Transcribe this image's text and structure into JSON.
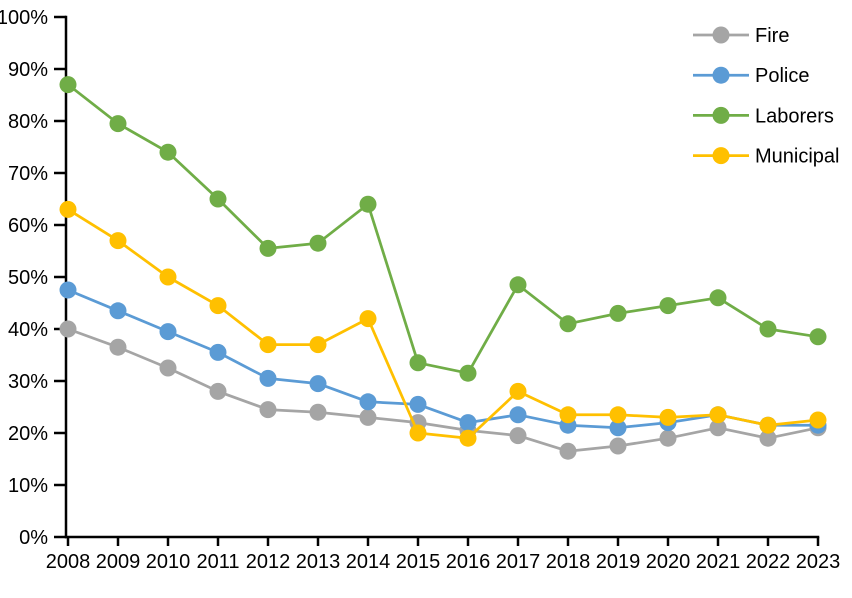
{
  "chart_data": {
    "type": "line",
    "title": "",
    "categories": [
      "2008",
      "2009",
      "2010",
      "2011",
      "2012",
      "2013",
      "2014",
      "2015",
      "2016",
      "2017",
      "2018",
      "2019",
      "2020",
      "2021",
      "2022",
      "2023"
    ],
    "series": [
      {
        "name": "Fire",
        "color": "#A5A5A5",
        "values": [
          40,
          36.5,
          32.5,
          28,
          24.5,
          24,
          23,
          22,
          20.5,
          19.5,
          16.5,
          17.5,
          19,
          21,
          19,
          21
        ]
      },
      {
        "name": "Police",
        "color": "#5B9BD5",
        "values": [
          47.5,
          43.5,
          39.5,
          35.5,
          30.5,
          29.5,
          26,
          25.5,
          22,
          23.5,
          21.5,
          21,
          22,
          23.5,
          21.5,
          21.5
        ]
      },
      {
        "name": "Laborers",
        "color": "#70AD47",
        "values": [
          87,
          79.5,
          74,
          65,
          55.5,
          56.5,
          64,
          33.5,
          31.5,
          48.5,
          41,
          43,
          44.5,
          46,
          40,
          38.5
        ]
      },
      {
        "name": "Municipal",
        "color": "#FFC000",
        "values": [
          63,
          57,
          50,
          44.5,
          37,
          37,
          42,
          20,
          19,
          28,
          23.5,
          23.5,
          23,
          23.5,
          21.5,
          22.5
        ]
      }
    ],
    "y_axis": {
      "min": 0,
      "max": 100,
      "step": 10,
      "format": "percent",
      "tick_labels": [
        "0%",
        "10%",
        "20%",
        "30%",
        "40%",
        "50%",
        "60%",
        "70%",
        "80%",
        "90%",
        "100%"
      ]
    },
    "x_axis": {
      "label": ""
    },
    "legend_position": "top-right",
    "grid": false,
    "axis_color": "#000000"
  }
}
